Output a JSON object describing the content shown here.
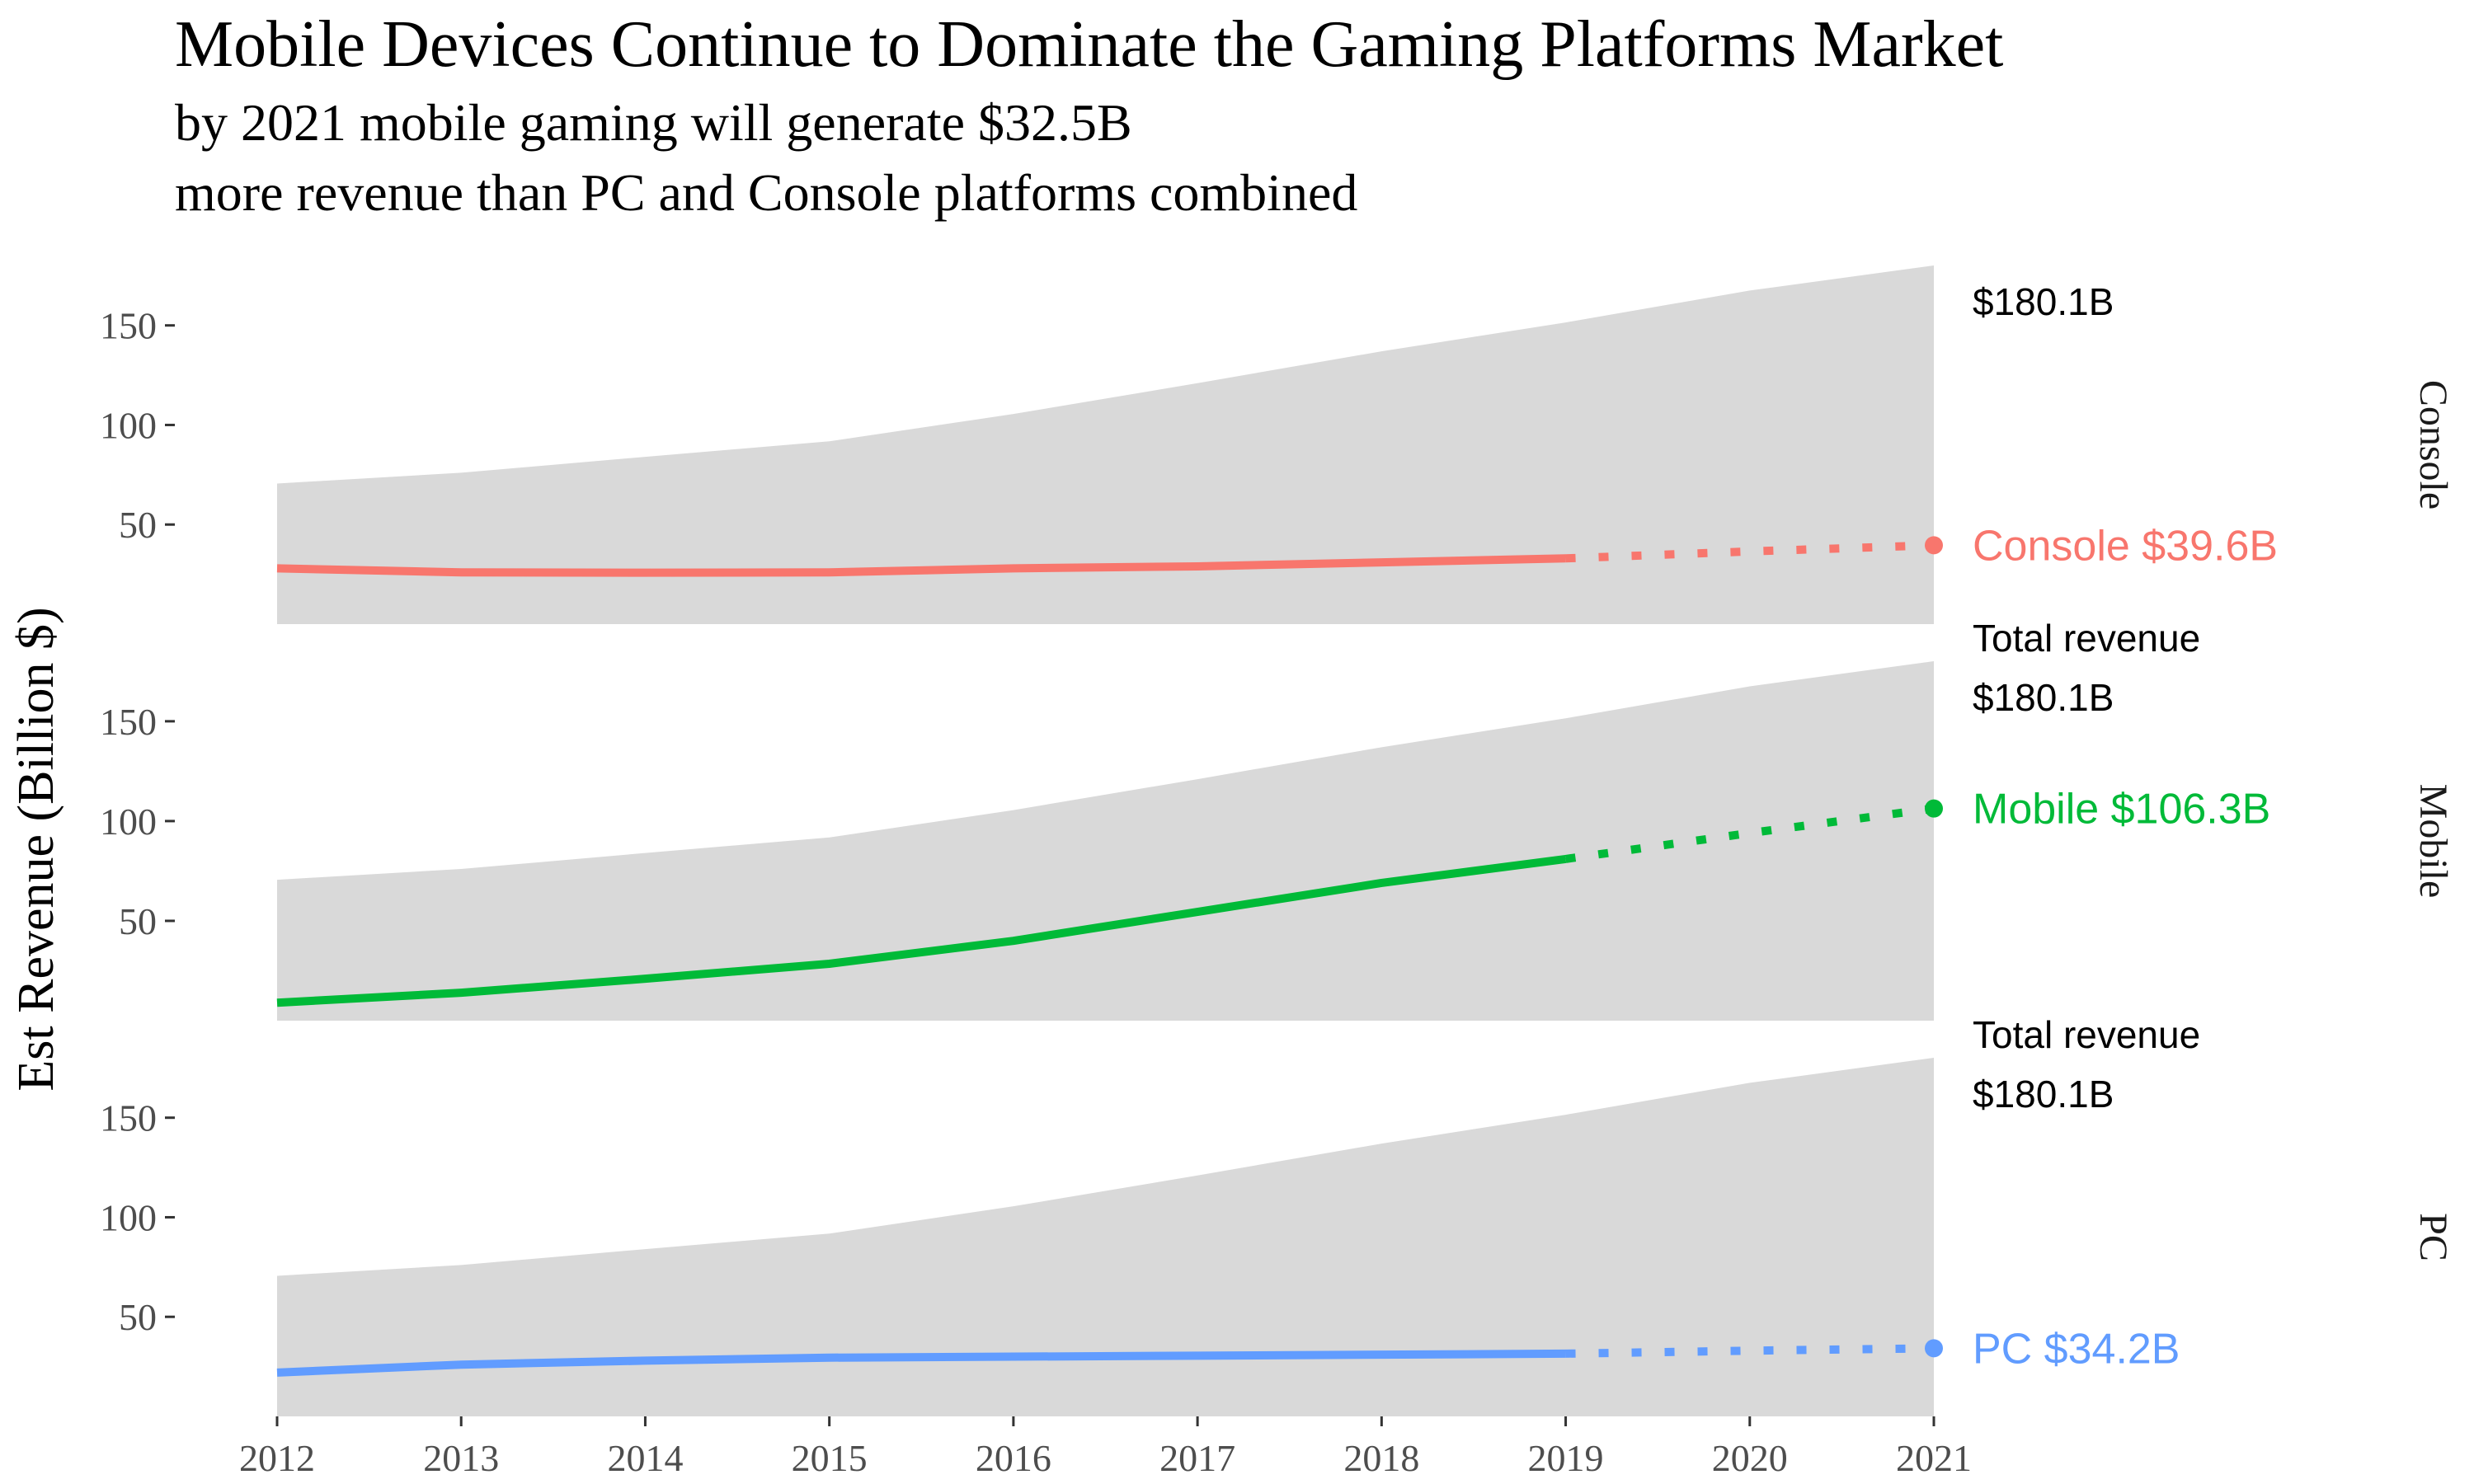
{
  "chart_data": {
    "type": "area",
    "title": "Mobile Devices Continue to Dominate the Gaming Platforms Market",
    "subtitle_lines": [
      "by 2021 mobile gaming will generate $32.5B",
      "more revenue than PC and Console platforms combined"
    ],
    "ylabel": "Est Revenue (Billion $)",
    "xlabel": "",
    "x": [
      2012,
      2013,
      2014,
      2015,
      2016,
      2017,
      2018,
      2019,
      2020,
      2021
    ],
    "ylim": [
      0,
      180.1
    ],
    "y_ticks": [
      50,
      100,
      150
    ],
    "grid": false,
    "total_revenue": {
      "values": [
        70.6,
        76.0,
        84.0,
        91.8,
        105.5,
        121.0,
        137.0,
        151.5,
        167.5,
        180.1
      ],
      "color": "#d9d9d9",
      "label_partial": "Total revenue",
      "label_value": "$180.1B"
    },
    "forecast_from": 2019,
    "panels": [
      {
        "strip": "Console",
        "name": "Console",
        "color": "#f8766d",
        "values": [
          28.0,
          26.0,
          25.8,
          26.0,
          28.0,
          29.0,
          31.0,
          33.0,
          36.5,
          39.6
        ],
        "end_label": "Console $39.6B"
      },
      {
        "strip": "Mobile",
        "name": "Mobile",
        "color": "#00ba38",
        "values": [
          9.0,
          14.0,
          21.0,
          28.5,
          40.0,
          54.5,
          69.0,
          81.0,
          94.0,
          106.3
        ],
        "end_label": "Mobile $106.3B"
      },
      {
        "strip": "PC",
        "name": "PC",
        "color": "#619cff",
        "values": [
          22.0,
          26.0,
          28.0,
          29.5,
          30.0,
          30.5,
          31.0,
          31.5,
          33.0,
          34.2
        ],
        "end_label": "PC $34.2B"
      }
    ]
  }
}
